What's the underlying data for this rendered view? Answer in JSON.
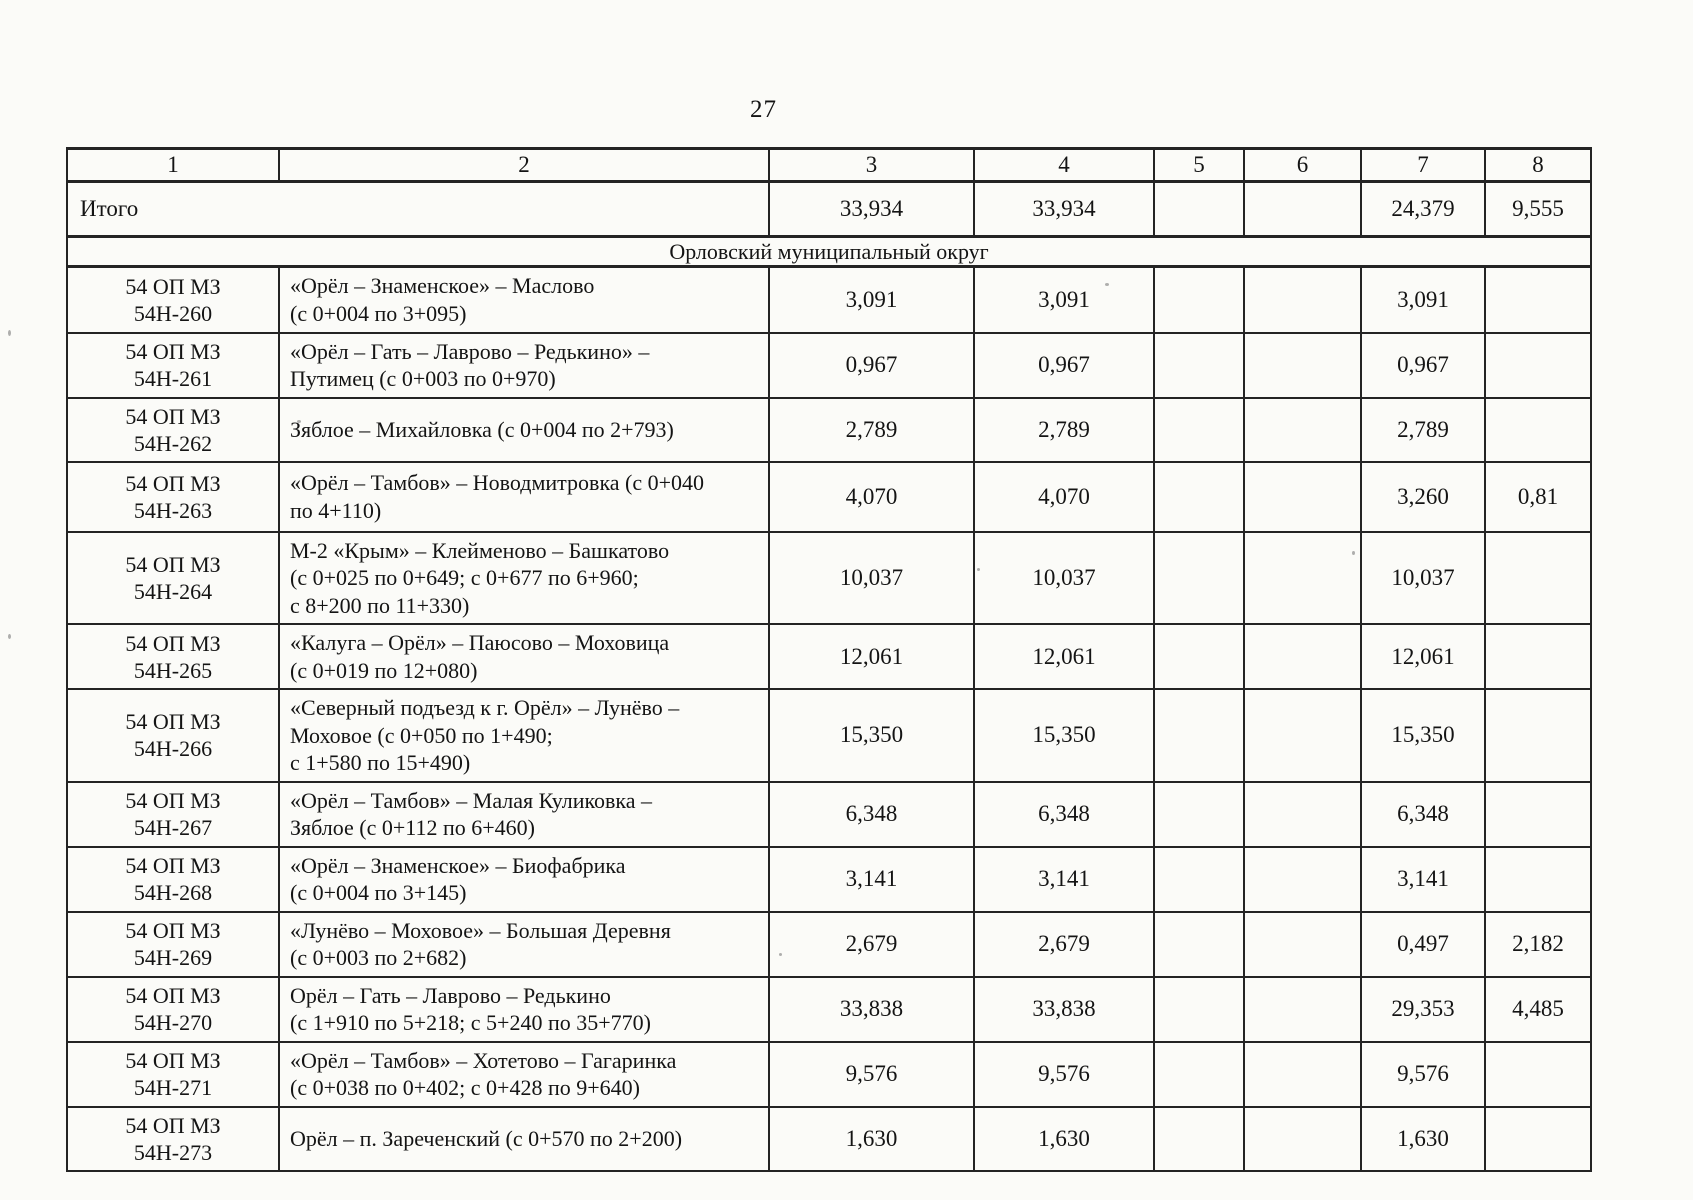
{
  "page": {
    "number": "27"
  },
  "table": {
    "column_headers": [
      "1",
      "2",
      "3",
      "4",
      "5",
      "6",
      "7",
      "8"
    ],
    "total_row": {
      "label": "Итого",
      "values": [
        "33,934",
        "33,934",
        "",
        "",
        "24,379",
        "9,555"
      ]
    },
    "section_header": "Орловский муниципальный округ",
    "rows": [
      {
        "code": "54 ОП МЗ 54Н-260",
        "name": "«Орёл – Знаменское» – Маслово\n(с 0+004 по 3+095)",
        "values": [
          "3,091",
          "3,091",
          "",
          "",
          "3,091",
          ""
        ]
      },
      {
        "code": "54 ОП МЗ 54Н-261",
        "name": "«Орёл – Гать – Лаврово – Редькино» –\nПутимец (с 0+003 по 0+970)",
        "values": [
          "0,967",
          "0,967",
          "",
          "",
          "0,967",
          ""
        ]
      },
      {
        "code": "54 ОП МЗ 54Н-262",
        "name": "Зяблое – Михайловка (с 0+004 по 2+793)",
        "values": [
          "2,789",
          "2,789",
          "",
          "",
          "2,789",
          ""
        ]
      },
      {
        "code": "54 ОП МЗ 54Н-263",
        "name": "«Орёл – Тамбов» – Новодмитровка (с 0+040\nпо 4+110)",
        "values": [
          "4,070",
          "4,070",
          "",
          "",
          "3,260",
          "0,81"
        ]
      },
      {
        "code": "54 ОП МЗ 54Н-264",
        "name": "М-2 «Крым» – Клейменово – Башкатово\n(с 0+025 по 0+649; с 0+677 по 6+960;\nс 8+200 по 11+330)",
        "values": [
          "10,037",
          "10,037",
          "",
          "",
          "10,037",
          ""
        ]
      },
      {
        "code": "54 ОП МЗ 54Н-265",
        "name": "«Калуга – Орёл» – Паюсово – Моховица\n(с 0+019 по 12+080)",
        "values": [
          "12,061",
          "12,061",
          "",
          "",
          "12,061",
          ""
        ]
      },
      {
        "code": "54 ОП МЗ 54Н-266",
        "name": "«Северный подъезд к г. Орёл» – Лунёво –\nМоховое (с 0+050 по 1+490;\nс 1+580 по 15+490)",
        "values": [
          "15,350",
          "15,350",
          "",
          "",
          "15,350",
          ""
        ]
      },
      {
        "code": "54 ОП МЗ 54Н-267",
        "name": "«Орёл – Тамбов» – Малая Куликовка –\nЗяблое (с 0+112 по 6+460)",
        "values": [
          "6,348",
          "6,348",
          "",
          "",
          "6,348",
          ""
        ]
      },
      {
        "code": "54 ОП МЗ 54Н-268",
        "name": "«Орёл – Знаменское» – Биофабрика\n(с 0+004 по 3+145)",
        "values": [
          "3,141",
          "3,141",
          "",
          "",
          "3,141",
          ""
        ]
      },
      {
        "code": "54 ОП МЗ 54Н-269",
        "name": "«Лунёво – Моховое» – Большая Деревня\n(с 0+003 по 2+682)",
        "values": [
          "2,679",
          "2,679",
          "",
          "",
          "0,497",
          "2,182"
        ]
      },
      {
        "code": "54 ОП МЗ 54Н-270",
        "name": "Орёл – Гать – Лаврово – Редькино\n(с 1+910 по 5+218; с 5+240 по 35+770)",
        "values": [
          "33,838",
          "33,838",
          "",
          "",
          "29,353",
          "4,485"
        ]
      },
      {
        "code": "54 ОП МЗ 54Н-271",
        "name": "«Орёл – Тамбов» – Хотетово – Гагаринка\n(с 0+038 по 0+402; с 0+428 по 9+640)",
        "values": [
          "9,576",
          "9,576",
          "",
          "",
          "9,576",
          ""
        ]
      },
      {
        "code": "54 ОП МЗ 54Н-273",
        "name": "Орёл – п. Зареченский (с 0+570 по 2+200)",
        "values": [
          "1,630",
          "1,630",
          "",
          "",
          "1,630",
          ""
        ]
      }
    ]
  }
}
